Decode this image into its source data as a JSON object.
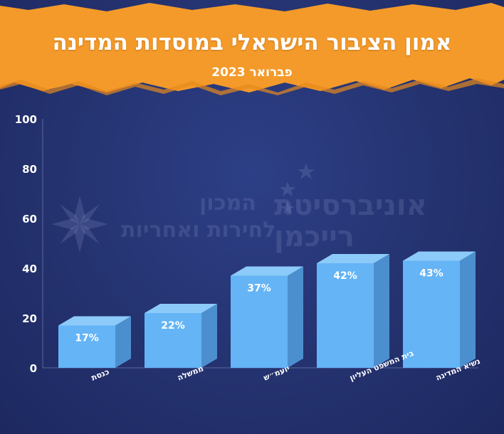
{
  "header": {
    "title": "אמון הציבור הישראלי במוסדות המדינה",
    "subtitle": "פברואר 2023"
  },
  "watermark": {
    "left_line1": "המכון",
    "left_line2": "לחירות ואחריות",
    "right_line1": "אוניברסיטת",
    "right_line2": "רייכמן"
  },
  "colors": {
    "banner": "#f39a2a",
    "bar_front": "#64b4f6",
    "bar_top": "#8ccaf9",
    "bar_side": "#4c8fcf",
    "background": "#24326f",
    "text": "#ffffff"
  },
  "chart_data": {
    "type": "bar",
    "title": "אמון הציבור הישראלי במוסדות המדינה",
    "subtitle": "פברואר 2023",
    "categories": [
      "כנסת",
      "ממשלה",
      "יועמ״ש",
      "בית המשפט העליון",
      "נשיא המדינה"
    ],
    "values": [
      17,
      22,
      37,
      42,
      43
    ],
    "data_labels": [
      "17%",
      "22%",
      "37%",
      "42%",
      "43%"
    ],
    "ylim": [
      0,
      100
    ],
    "yticks": [
      0,
      20,
      40,
      60,
      80,
      100
    ],
    "ytick_labels": [
      "0",
      "20",
      "40",
      "60",
      "80",
      "100"
    ],
    "grid": false,
    "style": "3d-bar"
  }
}
